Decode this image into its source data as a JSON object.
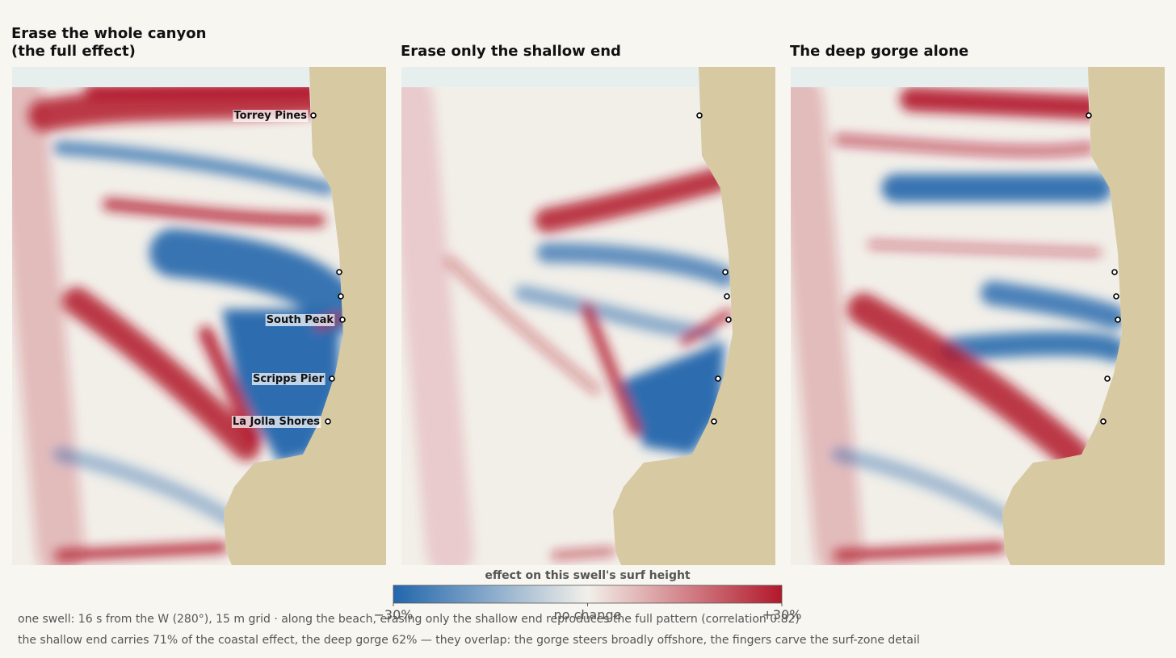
{
  "panels": [
    {
      "title_lines": [
        "Erase the whole canyon",
        "(the full effect)"
      ],
      "labels": [
        "Torrey Pines",
        "South Peak",
        "Scripps Pier",
        "La Jolla Shores"
      ]
    },
    {
      "title_lines": [
        "Erase only the shallow end"
      ]
    },
    {
      "title_lines": [
        "The deep gorge alone"
      ]
    }
  ],
  "colorbar": {
    "label": "effect on this swell's surf height",
    "lim": [
      -30,
      30
    ],
    "ticks": [
      {
        "value": -30,
        "label": "−30%"
      },
      {
        "value": 0,
        "label": "no change"
      },
      {
        "value": 30,
        "label": "+30%"
      }
    ],
    "colors": [
      "#2166ac",
      "#f2efe9",
      "#b2182b"
    ]
  },
  "notes": [
    "one swell: 16 s from the W (280°), 15 m grid  ·  along the beach, erasing only the shallow end reproduces the full pattern (correlation 0.82)",
    "the shallow end carries 71% of the coastal effect, the deep gorge 62% — they overlap: the gorge steers broadly offshore, the fingers carve the surf-zone detail"
  ]
}
